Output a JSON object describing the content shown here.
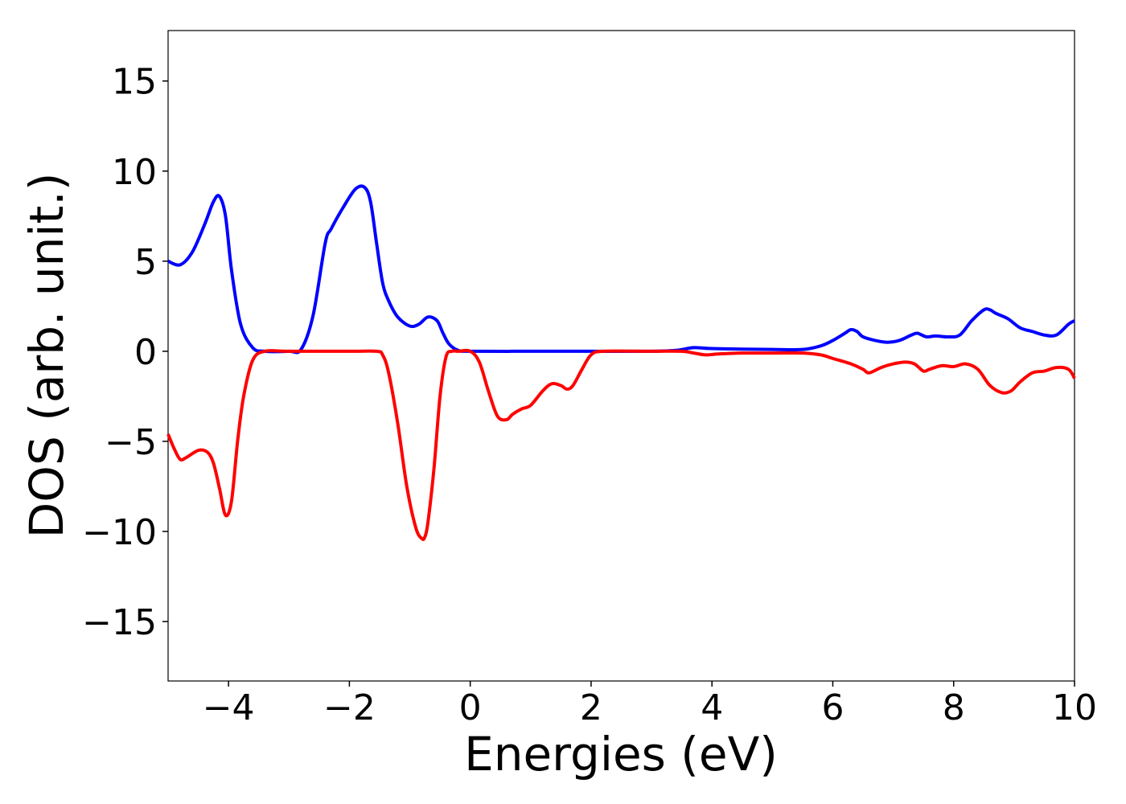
{
  "chart_data": {
    "type": "line",
    "title": "",
    "xlabel": "Energies (eV)",
    "ylabel": "DOS (arb. unit.)",
    "xlim": [
      -5,
      10
    ],
    "ylim": [
      -18.3,
      17.8
    ],
    "xticks": [
      -4,
      -2,
      0,
      2,
      4,
      6,
      8,
      10
    ],
    "yticks": [
      -15,
      -10,
      -5,
      0,
      5,
      10,
      15
    ],
    "xtick_labels": [
      "−4",
      "−2",
      "0",
      "2",
      "4",
      "6",
      "8",
      "10"
    ],
    "ytick_labels": [
      "−15",
      "−10",
      "−5",
      "0",
      "5",
      "10",
      "15"
    ],
    "grid": false,
    "legend": "none",
    "series": [
      {
        "color": "#0000ff",
        "x": [
          -5.0,
          -4.8,
          -4.6,
          -4.4,
          -4.25,
          -4.15,
          -4.05,
          -3.95,
          -3.8,
          -3.6,
          -3.4,
          -3.0,
          -2.8,
          -2.6,
          -2.4,
          -2.3,
          -2.1,
          -1.9,
          -1.75,
          -1.65,
          -1.55,
          -1.45,
          -1.35,
          -1.2,
          -1.0,
          -0.85,
          -0.7,
          -0.55,
          -0.45,
          -0.35,
          -0.2,
          0.0,
          1.0,
          2.0,
          3.0,
          3.4,
          3.7,
          4.0,
          5.0,
          5.5,
          5.8,
          6.0,
          6.2,
          6.3,
          6.4,
          6.5,
          6.7,
          6.9,
          7.1,
          7.3,
          7.4,
          7.55,
          7.7,
          7.9,
          8.1,
          8.3,
          8.5,
          8.6,
          8.7,
          8.9,
          9.1,
          9.3,
          9.5,
          9.7,
          9.9,
          10.0
        ],
        "y": [
          5.0,
          4.8,
          5.5,
          7.0,
          8.3,
          8.6,
          7.5,
          4.5,
          1.5,
          0.2,
          0.0,
          0.0,
          0.1,
          2.0,
          6.0,
          6.8,
          8.0,
          9.0,
          9.1,
          8.3,
          6.0,
          3.8,
          2.8,
          1.9,
          1.4,
          1.5,
          1.9,
          1.7,
          1.0,
          0.4,
          0.05,
          0.0,
          0.0,
          0.0,
          0.0,
          0.05,
          0.2,
          0.15,
          0.1,
          0.1,
          0.3,
          0.6,
          1.0,
          1.2,
          1.1,
          0.8,
          0.6,
          0.5,
          0.6,
          0.9,
          1.0,
          0.8,
          0.85,
          0.8,
          0.9,
          1.7,
          2.3,
          2.3,
          2.1,
          1.8,
          1.3,
          1.1,
          0.9,
          0.9,
          1.5,
          1.7
        ]
      },
      {
        "color": "#ff0000",
        "x": [
          -5.0,
          -4.9,
          -4.8,
          -4.7,
          -4.5,
          -4.35,
          -4.25,
          -4.15,
          -4.05,
          -3.95,
          -3.85,
          -3.75,
          -3.6,
          -3.4,
          -3.0,
          -2.0,
          -1.55,
          -1.45,
          -1.35,
          -1.2,
          -1.05,
          -0.9,
          -0.8,
          -0.75,
          -0.7,
          -0.6,
          -0.5,
          -0.4,
          -0.3,
          -0.2,
          0.0,
          0.15,
          0.3,
          0.45,
          0.6,
          0.7,
          0.85,
          1.0,
          1.2,
          1.35,
          1.5,
          1.6,
          1.7,
          1.85,
          2.0,
          2.2,
          3.0,
          3.5,
          3.7,
          3.9,
          4.1,
          4.5,
          5.0,
          5.5,
          5.8,
          6.0,
          6.3,
          6.5,
          6.6,
          6.8,
          7.0,
          7.2,
          7.35,
          7.5,
          7.6,
          7.8,
          8.0,
          8.2,
          8.4,
          8.6,
          8.8,
          8.95,
          9.1,
          9.3,
          9.5,
          9.7,
          9.9,
          10.0
        ],
        "y": [
          -4.6,
          -5.4,
          -6.0,
          -5.9,
          -5.5,
          -5.6,
          -6.2,
          -7.6,
          -9.1,
          -8.3,
          -5.0,
          -2.5,
          -0.5,
          0.0,
          0.0,
          0.0,
          0.0,
          -0.2,
          -1.2,
          -4.0,
          -7.5,
          -9.8,
          -10.4,
          -10.3,
          -9.5,
          -6.5,
          -2.5,
          -0.3,
          0.0,
          0.0,
          0.0,
          -0.6,
          -2.2,
          -3.6,
          -3.8,
          -3.5,
          -3.2,
          -3.0,
          -2.2,
          -1.8,
          -1.9,
          -2.1,
          -1.9,
          -1.0,
          -0.2,
          0.0,
          0.0,
          0.0,
          -0.1,
          -0.2,
          -0.15,
          -0.1,
          -0.1,
          -0.1,
          -0.2,
          -0.4,
          -0.7,
          -1.0,
          -1.2,
          -0.9,
          -0.7,
          -0.6,
          -0.7,
          -1.1,
          -1.0,
          -0.8,
          -0.85,
          -0.7,
          -1.0,
          -1.9,
          -2.3,
          -2.2,
          -1.7,
          -1.2,
          -1.1,
          -0.9,
          -1.0,
          -1.5
        ]
      }
    ]
  }
}
